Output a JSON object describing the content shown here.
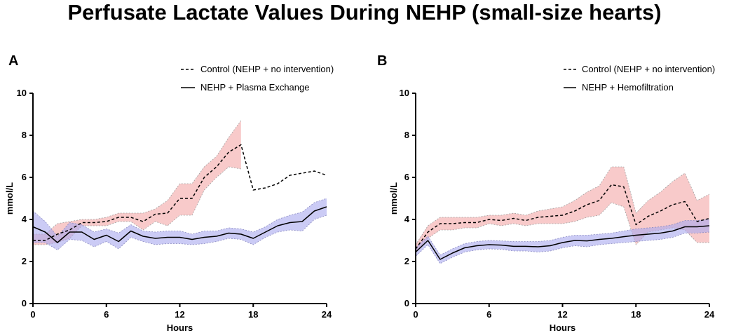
{
  "title": "Perfusate Lactate Values During NEHP (small-size hearts)",
  "colors": {
    "control_band": "#f4a7a7",
    "intervention_band": "#a9a9ef",
    "control_band_edge": "#a0a0a0",
    "intervention_band_edge": "#8a8ac0",
    "line": "#000000"
  },
  "chart_data": [
    {
      "panel_label": "A",
      "type": "line",
      "title": "",
      "xlabel": "Hours",
      "ylabel": "mmol/L",
      "xlim": [
        0,
        24
      ],
      "ylim": [
        0,
        10
      ],
      "xticks": [
        0,
        6,
        12,
        18,
        24
      ],
      "yticks": [
        0,
        2,
        4,
        6,
        8,
        10
      ],
      "legend": {
        "position": "top-right",
        "entries": [
          "Control (NEHP + no intervention)",
          "NEHP + Plasma Exchange"
        ]
      },
      "series": [
        {
          "name": "Control (NEHP + no intervention)",
          "style": "dashed",
          "x": [
            0,
            1,
            2,
            3,
            4,
            5,
            6,
            7,
            8,
            9,
            10,
            11,
            12,
            13,
            14,
            15,
            16,
            17,
            18,
            19,
            20,
            21,
            22,
            23,
            24
          ],
          "values": [
            3.0,
            3.0,
            3.3,
            3.5,
            3.85,
            3.85,
            3.9,
            4.1,
            4.1,
            3.9,
            4.25,
            4.3,
            5.0,
            5.0,
            6.0,
            6.5,
            7.2,
            7.55,
            5.4,
            5.5,
            5.7,
            6.1,
            6.2,
            6.3,
            6.1
          ],
          "band_x": [
            0,
            1,
            2,
            3,
            4,
            5,
            6,
            7,
            8,
            9,
            10,
            11,
            12,
            13,
            14,
            15,
            16,
            17
          ],
          "band_upper": [
            3.3,
            3.3,
            3.8,
            3.9,
            4.0,
            4.0,
            4.1,
            4.3,
            4.3,
            4.3,
            4.5,
            4.9,
            5.7,
            5.7,
            6.5,
            7.0,
            7.9,
            8.7
          ],
          "band_lower": [
            2.8,
            2.8,
            2.9,
            3.1,
            3.7,
            3.7,
            3.7,
            3.9,
            3.9,
            3.5,
            3.9,
            3.7,
            4.2,
            4.2,
            5.4,
            6.0,
            6.5,
            6.4
          ]
        },
        {
          "name": "NEHP + Plasma Exchange",
          "style": "solid",
          "x": [
            0,
            1,
            2,
            3,
            4,
            5,
            6,
            7,
            8,
            9,
            10,
            11,
            12,
            13,
            14,
            15,
            16,
            17,
            18,
            19,
            20,
            21,
            22,
            23,
            24
          ],
          "values": [
            3.65,
            3.4,
            2.9,
            3.4,
            3.4,
            3.05,
            3.25,
            2.95,
            3.45,
            3.2,
            3.1,
            3.15,
            3.15,
            3.05,
            3.15,
            3.2,
            3.35,
            3.3,
            3.1,
            3.4,
            3.7,
            3.85,
            3.9,
            4.4,
            4.6
          ],
          "band_x": [
            0,
            1,
            2,
            3,
            4,
            5,
            6,
            7,
            8,
            9,
            10,
            11,
            12,
            13,
            14,
            15,
            16,
            17,
            18,
            19,
            20,
            21,
            22,
            23,
            24
          ],
          "band_upper": [
            4.4,
            3.9,
            3.2,
            3.85,
            3.75,
            3.4,
            3.55,
            3.35,
            3.75,
            3.45,
            3.4,
            3.45,
            3.45,
            3.3,
            3.45,
            3.45,
            3.6,
            3.55,
            3.4,
            3.65,
            4.0,
            4.2,
            4.35,
            4.8,
            5.0
          ],
          "band_lower": [
            2.9,
            2.9,
            2.55,
            3.05,
            3.0,
            2.7,
            2.95,
            2.6,
            3.15,
            2.95,
            2.8,
            2.85,
            2.85,
            2.8,
            2.85,
            2.95,
            3.1,
            3.05,
            2.8,
            3.15,
            3.4,
            3.5,
            3.45,
            4.0,
            4.2
          ]
        }
      ]
    },
    {
      "panel_label": "B",
      "type": "line",
      "title": "",
      "xlabel": "Hours",
      "ylabel": "mmol/L",
      "xlim": [
        0,
        24
      ],
      "ylim": [
        0,
        10
      ],
      "xticks": [
        0,
        6,
        12,
        18,
        24
      ],
      "yticks": [
        0,
        2,
        4,
        6,
        8,
        10
      ],
      "legend": {
        "position": "top-right",
        "entries": [
          "Control (NEHP + no intervention)",
          "NEHP + Hemofiltration"
        ]
      },
      "series": [
        {
          "name": "Control (NEHP + no intervention)",
          "style": "dashed",
          "x": [
            0,
            1,
            2,
            3,
            4,
            5,
            6,
            7,
            8,
            9,
            10,
            11,
            12,
            13,
            14,
            15,
            16,
            17,
            18,
            19,
            20,
            21,
            22,
            23,
            24
          ],
          "values": [
            2.6,
            3.4,
            3.8,
            3.8,
            3.85,
            3.85,
            4.0,
            3.95,
            4.05,
            3.95,
            4.1,
            4.15,
            4.2,
            4.4,
            4.7,
            4.9,
            5.65,
            5.55,
            3.75,
            4.15,
            4.4,
            4.7,
            4.85,
            3.9,
            4.05
          ],
          "band_x": [
            0,
            1,
            2,
            3,
            4,
            5,
            6,
            7,
            8,
            9,
            10,
            11,
            12,
            13,
            14,
            15,
            16,
            17,
            18,
            19,
            20,
            21,
            22,
            23,
            24
          ],
          "band_upper": [
            2.8,
            3.7,
            4.1,
            4.1,
            4.1,
            4.1,
            4.2,
            4.2,
            4.3,
            4.2,
            4.4,
            4.5,
            4.6,
            4.9,
            5.3,
            5.6,
            6.5,
            6.5,
            4.3,
            4.9,
            5.3,
            5.8,
            6.2,
            4.9,
            5.2
          ],
          "band_lower": [
            2.4,
            3.1,
            3.5,
            3.5,
            3.6,
            3.6,
            3.8,
            3.7,
            3.8,
            3.7,
            3.8,
            3.8,
            3.8,
            3.9,
            4.1,
            4.2,
            4.8,
            4.6,
            2.8,
            3.4,
            3.5,
            3.6,
            3.5,
            2.9,
            2.9
          ]
        },
        {
          "name": "NEHP + Hemofiltration",
          "style": "solid",
          "x": [
            0,
            1,
            2,
            3,
            4,
            5,
            6,
            7,
            8,
            9,
            10,
            11,
            12,
            13,
            14,
            15,
            16,
            17,
            18,
            19,
            20,
            21,
            22,
            23,
            24
          ],
          "values": [
            2.45,
            3.0,
            2.1,
            2.4,
            2.65,
            2.75,
            2.8,
            2.78,
            2.72,
            2.72,
            2.7,
            2.75,
            2.9,
            3.0,
            2.98,
            3.05,
            3.1,
            3.18,
            3.25,
            3.3,
            3.35,
            3.45,
            3.65,
            3.65,
            3.7
          ],
          "band_x": [
            0,
            1,
            2,
            3,
            4,
            5,
            6,
            7,
            8,
            9,
            10,
            11,
            12,
            13,
            14,
            15,
            16,
            17,
            18,
            19,
            20,
            21,
            22,
            23,
            24
          ],
          "band_upper": [
            2.65,
            3.2,
            2.3,
            2.6,
            2.85,
            2.95,
            3.0,
            2.98,
            2.95,
            2.95,
            2.95,
            3.0,
            3.15,
            3.25,
            3.25,
            3.3,
            3.35,
            3.45,
            3.55,
            3.6,
            3.65,
            3.75,
            3.95,
            3.95,
            4.0
          ],
          "band_lower": [
            2.25,
            2.8,
            1.9,
            2.2,
            2.45,
            2.55,
            2.6,
            2.58,
            2.5,
            2.5,
            2.45,
            2.5,
            2.65,
            2.75,
            2.7,
            2.8,
            2.85,
            2.9,
            2.95,
            3.0,
            3.05,
            3.15,
            3.35,
            3.35,
            3.4
          ]
        }
      ]
    }
  ]
}
